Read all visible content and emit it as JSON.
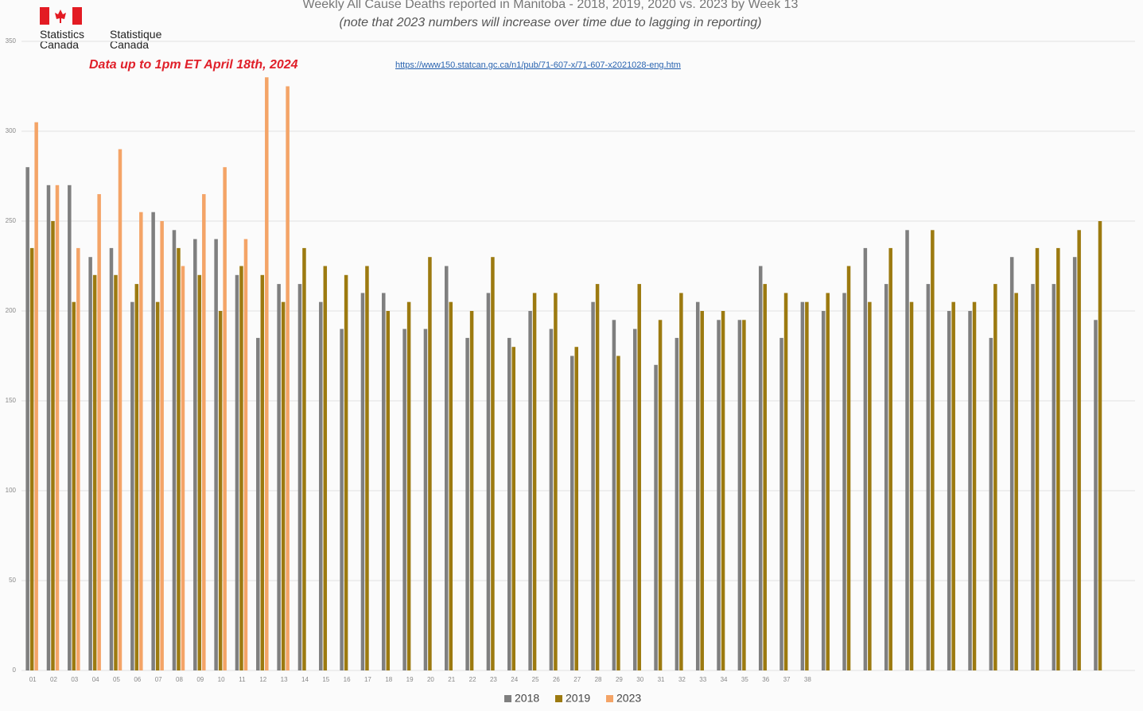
{
  "chart_data": {
    "type": "bar",
    "title": "Weekly All Cause Deaths reported in Manitoba - 2018, 2019, 2020 vs. 2023 by Week 13",
    "subtitle": "(note that 2023 numbers will increase over time due to lagging in reporting)",
    "annotation": "Data up to 1pm ET April 18th, 2024",
    "source_url": "https://www150.statcan.gc.ca/n1/pub/71-607-x/71-607-x2021028-eng.htm",
    "logo_en": "Statistics Canada",
    "logo_fr": "Statistique Canada",
    "categories": [
      "01",
      "02",
      "03",
      "04",
      "05",
      "06",
      "07",
      "08",
      "09",
      "10",
      "11",
      "12",
      "13",
      "14",
      "15",
      "16",
      "17",
      "18",
      "19",
      "20",
      "21",
      "22",
      "23",
      "24",
      "25",
      "26",
      "27",
      "28",
      "29",
      "30",
      "31",
      "32",
      "33",
      "34",
      "35",
      "36",
      "37",
      "38",
      null,
      null,
      null,
      null,
      null,
      null,
      null,
      null,
      null,
      null,
      null,
      null,
      null,
      null
    ],
    "series": [
      {
        "name": "2018",
        "color": "#7f7f7f",
        "values": [
          280,
          270,
          270,
          230,
          235,
          205,
          255,
          245,
          240,
          240,
          220,
          185,
          215,
          215,
          205,
          190,
          210,
          210,
          190,
          190,
          225,
          185,
          210,
          185,
          200,
          190,
          175,
          205,
          195,
          190,
          170,
          185,
          205,
          195,
          195,
          225,
          185,
          205,
          200,
          210,
          235,
          215,
          245,
          215,
          200,
          200,
          185,
          230,
          215,
          215,
          230,
          195
        ]
      },
      {
        "name": "2019",
        "color": "#9c7a10",
        "values": [
          235,
          250,
          205,
          220,
          220,
          215,
          205,
          235,
          220,
          200,
          225,
          220,
          205,
          235,
          225,
          220,
          225,
          200,
          205,
          230,
          205,
          200,
          230,
          180,
          210,
          210,
          180,
          215,
          175,
          215,
          195,
          210,
          200,
          200,
          195,
          215,
          210,
          205,
          210,
          225,
          205,
          235,
          205,
          245,
          205,
          205,
          215,
          210,
          235,
          235,
          245,
          250
        ]
      },
      {
        "name": "2023",
        "color": "#f4a467",
        "values": [
          305,
          270,
          235,
          265,
          290,
          255,
          250,
          225,
          265,
          280,
          240,
          330,
          325,
          null,
          null,
          null,
          null,
          null,
          null,
          null,
          null,
          null,
          null,
          null,
          null,
          null,
          null,
          null,
          null,
          null,
          null,
          null,
          null,
          null,
          null,
          null,
          null,
          null,
          null,
          null,
          null,
          null,
          null,
          null,
          null,
          null,
          null,
          null,
          null,
          null,
          null,
          null
        ]
      }
    ],
    "ylim": [
      0,
      350
    ],
    "yticks": [
      0,
      50,
      100,
      150,
      200,
      250,
      300,
      350
    ],
    "grid": true
  }
}
